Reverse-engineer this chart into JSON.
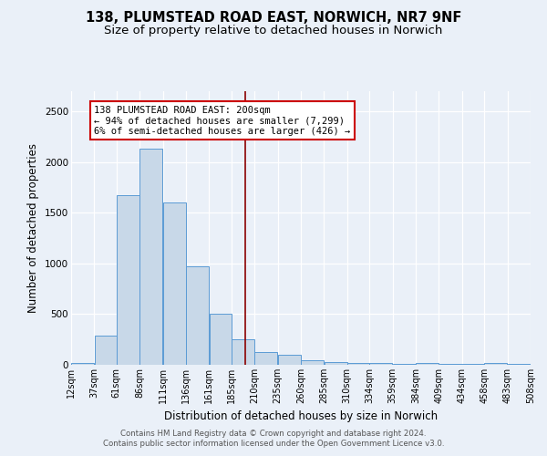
{
  "title": "138, PLUMSTEAD ROAD EAST, NORWICH, NR7 9NF",
  "subtitle": "Size of property relative to detached houses in Norwich",
  "xlabel": "Distribution of detached houses by size in Norwich",
  "ylabel": "Number of detached properties",
  "footer1": "Contains HM Land Registry data © Crown copyright and database right 2024.",
  "footer2": "Contains public sector information licensed under the Open Government Licence v3.0.",
  "annotation_line1": "138 PLUMSTEAD ROAD EAST: 200sqm",
  "annotation_line2": "← 94% of detached houses are smaller (7,299)",
  "annotation_line3": "6% of semi-detached houses are larger (426) →",
  "bar_left_edges": [
    12,
    37,
    61,
    86,
    111,
    136,
    161,
    185,
    210,
    235,
    260,
    285,
    310,
    334,
    359,
    384,
    409,
    434,
    458,
    483
  ],
  "bar_widths": [
    25,
    24,
    25,
    25,
    25,
    25,
    24,
    25,
    25,
    25,
    25,
    25,
    24,
    25,
    25,
    25,
    25,
    24,
    25,
    25
  ],
  "bar_heights": [
    20,
    290,
    1670,
    2130,
    1600,
    975,
    500,
    250,
    130,
    100,
    45,
    25,
    15,
    15,
    5,
    15,
    5,
    5,
    20,
    5
  ],
  "bar_color": "#c8d8e8",
  "bar_edge_color": "#5b9bd5",
  "bg_color": "#eaf0f8",
  "grid_color": "#ffffff",
  "vline_x": 200,
  "vline_color": "#8b0000",
  "ylim": [
    0,
    2700
  ],
  "xlim": [
    12,
    508
  ],
  "tick_labels": [
    "12sqm",
    "37sqm",
    "61sqm",
    "86sqm",
    "111sqm",
    "136sqm",
    "161sqm",
    "185sqm",
    "210sqm",
    "235sqm",
    "260sqm",
    "285sqm",
    "310sqm",
    "334sqm",
    "359sqm",
    "384sqm",
    "409sqm",
    "434sqm",
    "458sqm",
    "483sqm",
    "508sqm"
  ],
  "tick_positions": [
    12,
    37,
    61,
    86,
    111,
    136,
    161,
    185,
    210,
    235,
    260,
    285,
    310,
    334,
    359,
    384,
    409,
    434,
    458,
    483,
    508
  ],
  "annotation_box_color": "#ffffff",
  "annotation_box_edge": "#cc0000",
  "title_fontsize": 10.5,
  "subtitle_fontsize": 9.5,
  "axis_label_fontsize": 8.5,
  "tick_fontsize": 7.0,
  "ytick_fontsize": 7.5,
  "ann_fontsize": 7.5,
  "footer_fontsize": 6.2
}
